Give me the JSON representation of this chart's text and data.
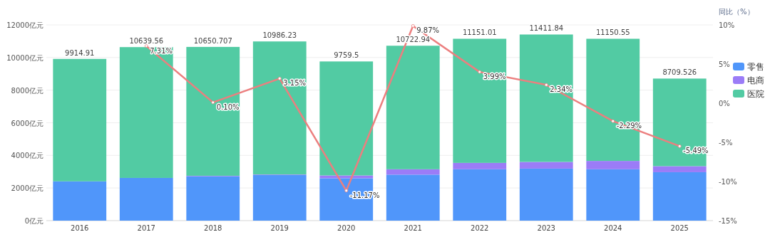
{
  "chart_data": {
    "type": "bar",
    "stacked": true,
    "categories": [
      "2016",
      "2017",
      "2018",
      "2019",
      "2020",
      "2021",
      "2022",
      "2023",
      "2024",
      "2025"
    ],
    "series": [
      {
        "name": "零售",
        "color": "#5096fa",
        "values": [
          2410,
          2620,
          2720,
          2800,
          2600,
          2820,
          3150,
          3190,
          3150,
          2970
        ]
      },
      {
        "name": "电商",
        "color": "#9b7cf7",
        "values": [
          null,
          null,
          30,
          30,
          170,
          330,
          390,
          410,
          510,
          370
        ]
      },
      {
        "name": "医院",
        "color": "#52cba3",
        "values": [
          7504.91,
          8019.56,
          7900.707,
          8156.23,
          6989.5,
          7572.94,
          7611.01,
          7811.84,
          7490.55,
          5369.526
        ]
      },
      {
        "type": "line",
        "axis": "y2",
        "color": "#ec7f7f",
        "marker": "circle",
        "values": [
          null,
          7.31,
          0.1,
          3.15,
          -11.17,
          9.87,
          3.99,
          2.34,
          -2.29,
          -5.49
        ],
        "value_labels": [
          null,
          "7.31%",
          "0.10%",
          "3.15%",
          "-11.17%",
          "9.87%",
          "3.99%",
          "2.34%",
          "-2.29%",
          "-5.49%"
        ]
      }
    ],
    "totals": [
      "9914.91",
      "10639.56",
      "10650.707",
      "10986.23",
      "9759.5",
      "10722.94",
      "11151.01",
      "11411.84",
      "11150.55",
      "8709.526"
    ],
    "ylim": [
      0,
      12000
    ],
    "yticks": [
      {
        "value": 0,
        "label": "0亿元"
      },
      {
        "value": 2000,
        "label": "2000亿元"
      },
      {
        "value": 4000,
        "label": "4000亿元"
      },
      {
        "value": 6000,
        "label": "6000亿元"
      },
      {
        "value": 8000,
        "label": "8000亿元"
      },
      {
        "value": 10000,
        "label": "10000亿元"
      },
      {
        "value": 12000,
        "label": "12000亿元"
      }
    ],
    "y2label": "同比（%）",
    "y2lim": [
      -15,
      10
    ],
    "y2ticks": [
      {
        "value": -15,
        "label": "-15%"
      },
      {
        "value": -10,
        "label": "-10%"
      },
      {
        "value": -5,
        "label": "-5%"
      },
      {
        "value": 0,
        "label": "0%"
      },
      {
        "value": 5,
        "label": "5%"
      },
      {
        "value": 10,
        "label": "10%"
      }
    ],
    "grid": "y",
    "legend": "right"
  }
}
